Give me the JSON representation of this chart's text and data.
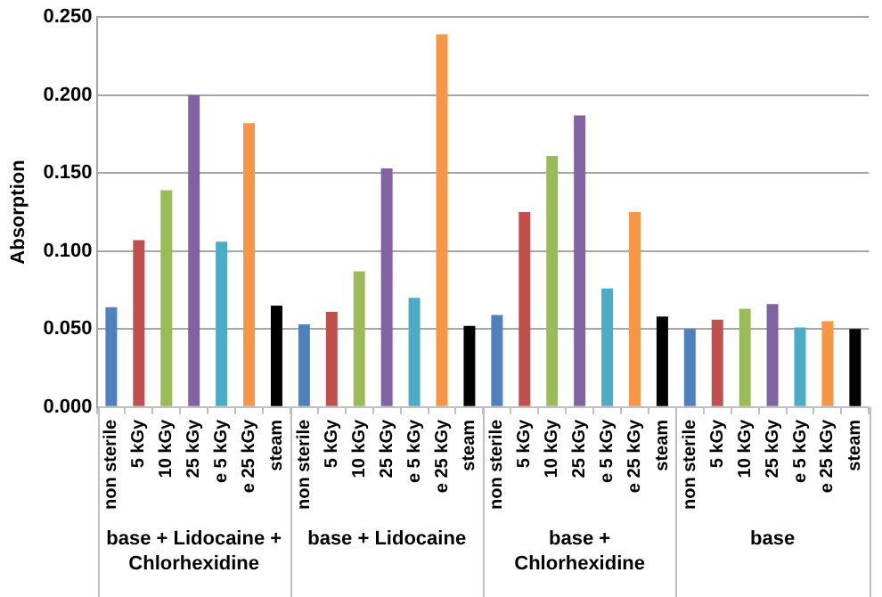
{
  "chart_data": {
    "type": "bar",
    "ylabel": "Absorption",
    "categories": [
      "non sterile",
      "5 kGy",
      "10 kGy",
      "25 kGy",
      "e 5 kGy",
      "e 25 kGy",
      "steam",
      "non sterile",
      "5 kGy",
      "10 kGy",
      "25 kGy",
      "e 5 kGy",
      "e 25 kGy",
      "steam",
      "non sterile",
      "5 kGy",
      "10 kGy",
      "25 kGy",
      "e 5 kGy",
      "e 25 kGy",
      "steam",
      "non sterile",
      "5 kGy",
      "10 kGy",
      "25 kGy",
      "e 5 kGy",
      "e 25 kGy",
      "steam"
    ],
    "values": [
      0.064,
      0.107,
      0.139,
      0.2,
      0.106,
      0.182,
      0.065,
      0.053,
      0.061,
      0.087,
      0.153,
      0.07,
      0.239,
      0.052,
      0.059,
      0.125,
      0.161,
      0.187,
      0.076,
      0.125,
      0.058,
      0.05,
      0.056,
      0.063,
      0.066,
      0.051,
      0.055,
      0.05
    ],
    "colors": [
      "#4f81bd",
      "#c0504d",
      "#9bbb59",
      "#8064a2",
      "#4bacc6",
      "#f79646",
      "#000000",
      "#4f81bd",
      "#c0504d",
      "#9bbb59",
      "#8064a2",
      "#4bacc6",
      "#f79646",
      "#000000",
      "#4f81bd",
      "#c0504d",
      "#9bbb59",
      "#8064a2",
      "#4bacc6",
      "#f79646",
      "#000000",
      "#4f81bd",
      "#c0504d",
      "#9bbb59",
      "#8064a2",
      "#4bacc6",
      "#f79646",
      "#000000"
    ],
    "ylim": [
      0,
      0.25
    ],
    "yticks": [
      {
        "value": 0,
        "label": "0.000"
      },
      {
        "value": 0.05,
        "label": "0.050"
      },
      {
        "value": 0.1,
        "label": "0.100"
      },
      {
        "value": 0.15,
        "label": "0.150"
      },
      {
        "value": 0.2,
        "label": "0.200"
      },
      {
        "value": 0.25,
        "label": "0.250"
      }
    ],
    "annotations": [
      "base + Lidocaine + Chlorhexidine",
      "base + Lidocaine",
      "base + Chlorhexidine",
      "base"
    ],
    "grid": "y",
    "legend": false
  }
}
